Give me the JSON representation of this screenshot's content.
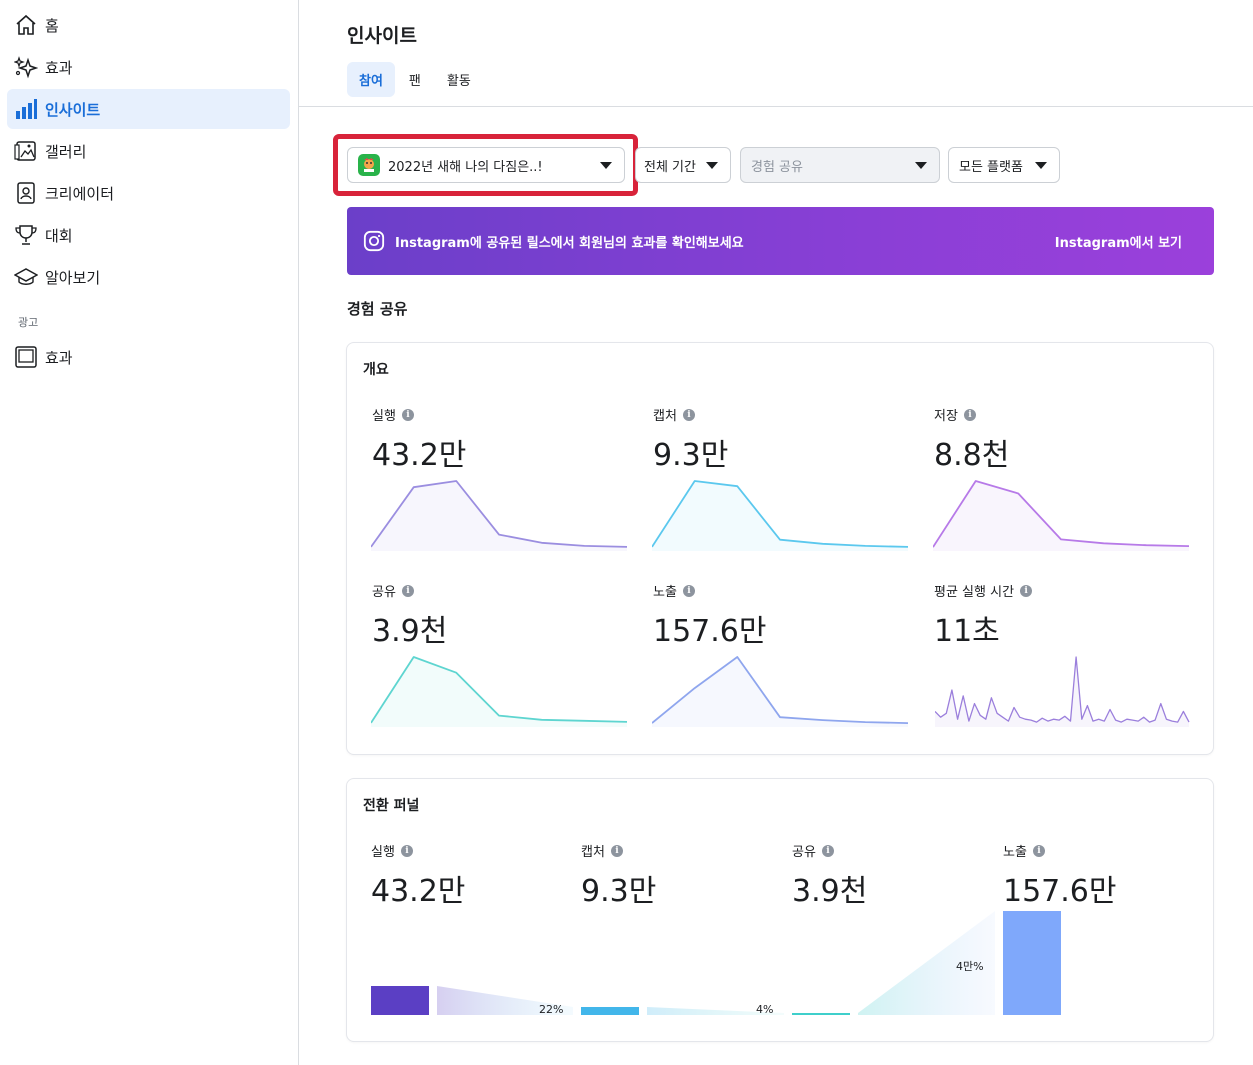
{
  "sidebar": {
    "items": [
      {
        "label": "홈",
        "icon": "home-icon"
      },
      {
        "label": "효과",
        "icon": "sparkle-icon"
      },
      {
        "label": "인사이트",
        "icon": "bar-chart-icon"
      },
      {
        "label": "갤러리",
        "icon": "gallery-icon"
      },
      {
        "label": "크리에이터",
        "icon": "creator-icon"
      },
      {
        "label": "대회",
        "icon": "trophy-icon"
      },
      {
        "label": "알아보기",
        "icon": "graduation-cap-icon"
      }
    ],
    "section_ads": "광고",
    "ads_items": [
      {
        "label": "효과",
        "icon": "frame-icon"
      }
    ]
  },
  "main": {
    "title": "인사이트",
    "tabs": [
      "참여",
      "팬",
      "활동"
    ],
    "filters": {
      "effect": "2022년 새해 나의 다짐은..!",
      "period": "전체 기간",
      "experience": "경험 공유",
      "platform": "모든 플랫폼"
    },
    "banner": {
      "text": "Instagram에 공유된 릴스에서 회원님의 효과를 확인해보세요",
      "link": "Instagram에서 보기"
    },
    "section_title": "경험 공유",
    "overview": {
      "title": "개요",
      "metrics": [
        {
          "label": "실행",
          "value": "43.2만",
          "color": "#9b8ee0",
          "spark": [
            2,
            60,
            66,
            14,
            6,
            3,
            2
          ]
        },
        {
          "label": "캡처",
          "value": "9.3만",
          "color": "#5bc8ee",
          "spark": [
            2,
            66,
            61,
            9,
            5,
            3,
            2
          ]
        },
        {
          "label": "저장",
          "value": "8.8천",
          "color": "#b77ae8",
          "spark": [
            2,
            71,
            58,
            10,
            6,
            4,
            3
          ]
        },
        {
          "label": "공유",
          "value": "3.9천",
          "color": "#5ed5d0",
          "spark": [
            2,
            65,
            50,
            9,
            5,
            4,
            3
          ]
        },
        {
          "label": "노출",
          "value": "157.6만",
          "color": "#8fa6ee",
          "spark": [
            2,
            38,
            70,
            8,
            5,
            3,
            2
          ]
        },
        {
          "label": "평균 실행 시간",
          "value": "11초",
          "color": "#9b7fdc",
          "spark": [
            14,
            8,
            12,
            36,
            6,
            30,
            4,
            22,
            10,
            6,
            28,
            12,
            8,
            4,
            18,
            8,
            6,
            5,
            3,
            7,
            4,
            6,
            5,
            9,
            4,
            70,
            6,
            20,
            4,
            6,
            4,
            16,
            5,
            3,
            6,
            5,
            4,
            8,
            3,
            5,
            22,
            6,
            4,
            3,
            14,
            3
          ]
        }
      ]
    },
    "funnel": {
      "title": "전환 퍼널",
      "stages": [
        {
          "label": "실행",
          "value": "43.2만",
          "color": "#5b3fc4",
          "amount": 432000
        },
        {
          "label": "캡처",
          "value": "9.3만",
          "color": "#42b6ea",
          "amount": 93000
        },
        {
          "label": "공유",
          "value": "3.9천",
          "color": "#3fcfcb",
          "amount": 3900
        },
        {
          "label": "노출",
          "value": "157.6만",
          "color": "#7fa8fb",
          "amount": 1576000
        }
      ],
      "conversions": [
        "22%",
        "4%",
        "4만%"
      ]
    }
  }
}
